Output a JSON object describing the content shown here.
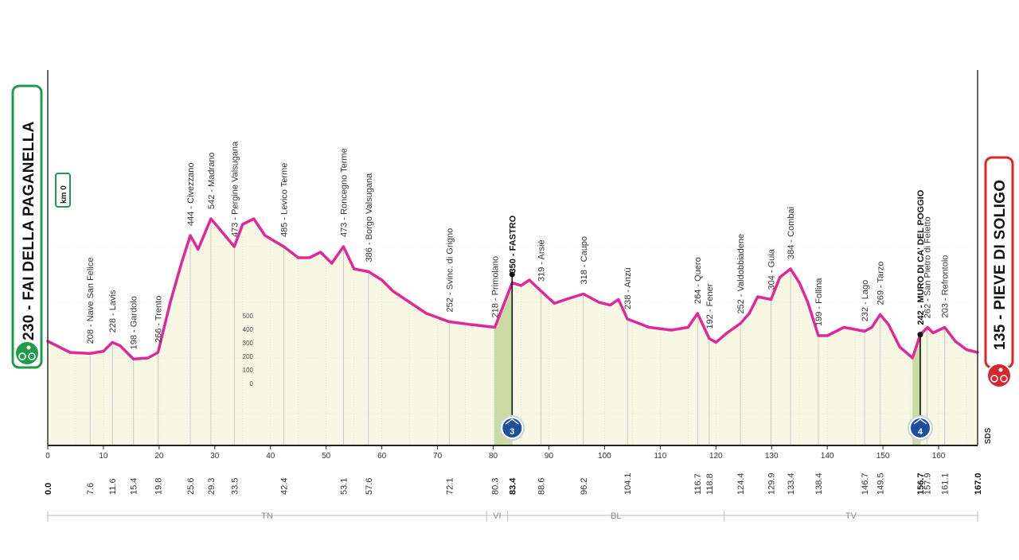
{
  "chart_data": {
    "type": "area",
    "title": "",
    "start": {
      "label": "230 - FAI DELLA PAGANELLA",
      "km": "0.0",
      "color": "#1e9b4c"
    },
    "finish": {
      "label": "135 - PIEVE DI SOLIGO",
      "km": "167.0",
      "color": "#d8262e"
    },
    "km_zero_label": "km 0",
    "sds_label": "SDS",
    "profile_color": "#e0289a",
    "fill_color": "#f6f8e4",
    "climb_fill_color": "#c9dba0",
    "xlim": [
      0,
      167
    ],
    "x_ticks": [
      "0",
      "10",
      "20",
      "30",
      "40",
      "50",
      "60",
      "70",
      "80",
      "90",
      "100",
      "110",
      "120",
      "130",
      "140",
      "150",
      "160"
    ],
    "altitude_scale": [
      "500",
      "400",
      "300",
      "200",
      "100",
      "0"
    ],
    "waypoints": [
      {
        "km": "7.6",
        "label": "208 - Nave San Felice",
        "bold": false
      },
      {
        "km": "11.6",
        "label": "228 - Lavis",
        "bold": false
      },
      {
        "km": "15.4",
        "label": "198 - Gardolo",
        "bold": false
      },
      {
        "km": "19.8",
        "label": "266 - Trento",
        "bold": false
      },
      {
        "km": "25.6",
        "label": "444 - Civezzano",
        "bold": false
      },
      {
        "km": "29.3",
        "label": "542 - Madrano",
        "bold": false
      },
      {
        "km": "33.5",
        "label": "473 - Pergine Valsugana",
        "bold": false
      },
      {
        "km": "42.4",
        "label": "485 - Levico Terme",
        "bold": false
      },
      {
        "km": "53.1",
        "label": "473 - Roncegno Terme",
        "bold": false
      },
      {
        "km": "57.6",
        "label": "386 - Borgo Valsugana",
        "bold": false
      },
      {
        "km": "72.1",
        "label": "252 - Svinc. di Grigno",
        "bold": false
      },
      {
        "km": "80.3",
        "label": "218 - Primolano",
        "bold": false
      },
      {
        "km": "83.4",
        "label": "350 - FASTRO",
        "bold": true
      },
      {
        "km": "88.6",
        "label": "319 - Arsiè",
        "bold": false
      },
      {
        "km": "96.2",
        "label": "318 - Caupo",
        "bold": false
      },
      {
        "km": "104.1",
        "label": "238 - Anzù",
        "bold": false
      },
      {
        "km": "116.7",
        "label": "264 - Quero",
        "bold": false
      },
      {
        "km": "118.8",
        "label": "192 - Fener",
        "bold": false
      },
      {
        "km": "124.4",
        "label": "252 - Valdobbiadene",
        "bold": false
      },
      {
        "km": "129.9",
        "label": "304 - Guia",
        "bold": false
      },
      {
        "km": "133.4",
        "label": "384 - Combai",
        "bold": false
      },
      {
        "km": "138.4",
        "label": "199 - Follina",
        "bold": false
      },
      {
        "km": "146.7",
        "label": "232 - Lago",
        "bold": false
      },
      {
        "km": "149.5",
        "label": "269 - Tarzo",
        "bold": false
      },
      {
        "km": "156.7",
        "label": "242 - MURO DI CA' DEL POGGIO",
        "bold": true
      },
      {
        "km": "157.9",
        "label": "262 - San Pietro di Feletto",
        "bold": false
      },
      {
        "km": "161.1",
        "label": "203 - Refrontolo",
        "bold": false
      }
    ],
    "climbs": [
      {
        "km": 83.4,
        "start_km": 80.3,
        "altitude": 350,
        "category": "3"
      },
      {
        "km": 156.7,
        "start_km": 155.3,
        "altitude": 242,
        "category": "4"
      }
    ],
    "regions": [
      {
        "name": "TN",
        "from_km": 0,
        "to_km": 78.8
      },
      {
        "name": "VI",
        "from_km": 78.8,
        "to_km": 82.6
      },
      {
        "name": "BL",
        "from_km": 82.6,
        "to_km": 121.5
      },
      {
        "name": "TV",
        "from_km": 121.5,
        "to_km": 167
      }
    ],
    "profile": [
      [
        0,
        230
      ],
      [
        4,
        210
      ],
      [
        7.6,
        208
      ],
      [
        10,
        212
      ],
      [
        11.6,
        228
      ],
      [
        13,
        222
      ],
      [
        15.4,
        198
      ],
      [
        18,
        200
      ],
      [
        19.8,
        210
      ],
      [
        22,
        300
      ],
      [
        24,
        370
      ],
      [
        25.6,
        420
      ],
      [
        27,
        395
      ],
      [
        29.3,
        450
      ],
      [
        31,
        430
      ],
      [
        33.5,
        400
      ],
      [
        35,
        440
      ],
      [
        37,
        450
      ],
      [
        39,
        420
      ],
      [
        42.4,
        400
      ],
      [
        45,
        380
      ],
      [
        47,
        380
      ],
      [
        49,
        390
      ],
      [
        51,
        370
      ],
      [
        53.1,
        400
      ],
      [
        55,
        360
      ],
      [
        57.6,
        355
      ],
      [
        60,
        340
      ],
      [
        62,
        320
      ],
      [
        65,
        300
      ],
      [
        68,
        280
      ],
      [
        72.1,
        265
      ],
      [
        76,
        260
      ],
      [
        80.3,
        255
      ],
      [
        83.4,
        335
      ],
      [
        85,
        330
      ],
      [
        86.5,
        340
      ],
      [
        88.6,
        320
      ],
      [
        91,
        298
      ],
      [
        93,
        305
      ],
      [
        96.2,
        315
      ],
      [
        99,
        300
      ],
      [
        101,
        295
      ],
      [
        102.5,
        305
      ],
      [
        104.1,
        270
      ],
      [
        108,
        255
      ],
      [
        112,
        250
      ],
      [
        115,
        255
      ],
      [
        116.7,
        280
      ],
      [
        118.8,
        235
      ],
      [
        120,
        228
      ],
      [
        122,
        245
      ],
      [
        124.4,
        262
      ],
      [
        126,
        280
      ],
      [
        127.5,
        310
      ],
      [
        129.9,
        305
      ],
      [
        131.5,
        345
      ],
      [
        133.4,
        360
      ],
      [
        135,
        335
      ],
      [
        136.5,
        300
      ],
      [
        138.4,
        240
      ],
      [
        140,
        240
      ],
      [
        143,
        255
      ],
      [
        146.7,
        248
      ],
      [
        148,
        255
      ],
      [
        149.5,
        278
      ],
      [
        151,
        260
      ],
      [
        153,
        220
      ],
      [
        155.3,
        200
      ],
      [
        156.7,
        242
      ],
      [
        158,
        255
      ],
      [
        159,
        245
      ],
      [
        161.1,
        255
      ],
      [
        163,
        230
      ],
      [
        165,
        215
      ],
      [
        167,
        210
      ]
    ]
  }
}
